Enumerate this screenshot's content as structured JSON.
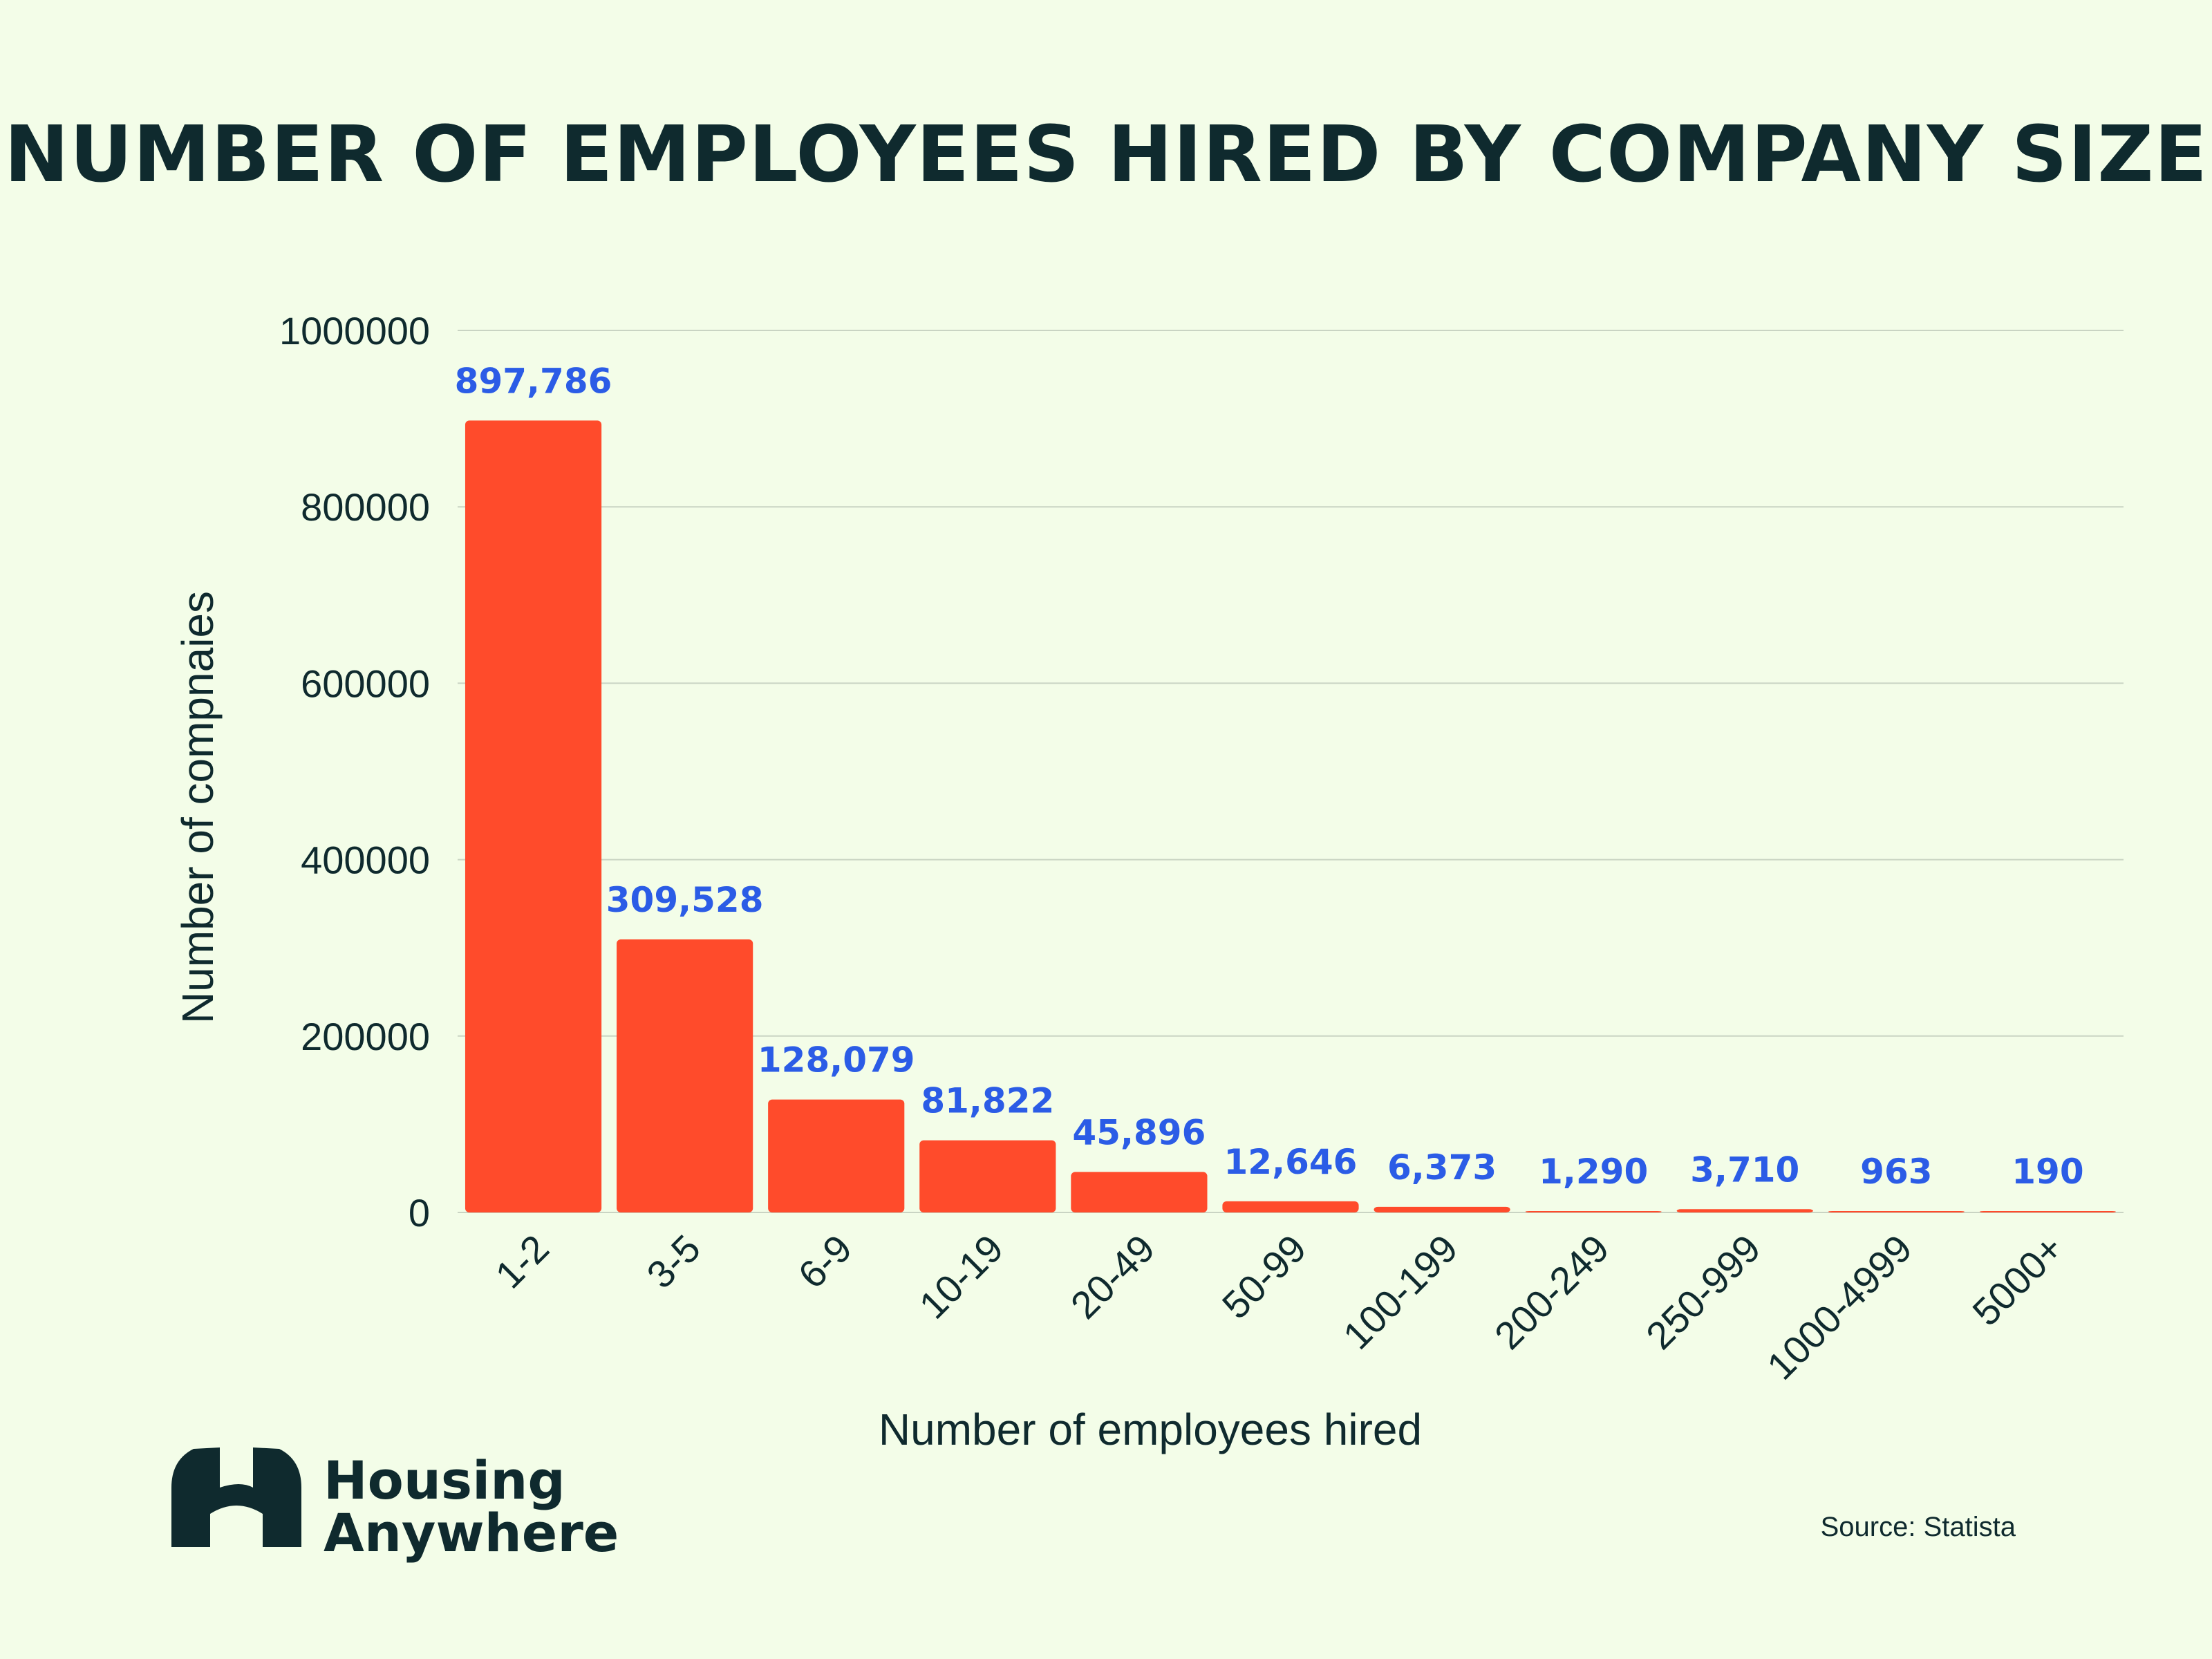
{
  "chart_data": {
    "type": "bar",
    "title": "NUMBER OF EMPLOYEES HIRED BY COMPANY SIZE",
    "xlabel": "Number of employees hired",
    "ylabel": "Number of compnaies",
    "categories": [
      "1-2",
      "3-5",
      "6-9",
      "10-19",
      "20-49",
      "50-99",
      "100-199",
      "200-249",
      "250-999",
      "1000-4999",
      "5000+"
    ],
    "values": [
      897786,
      309528,
      128079,
      81822,
      45896,
      12646,
      6373,
      1290,
      3710,
      963,
      190
    ],
    "value_labels": [
      "897,786",
      "309,528",
      "128,079",
      "81,822",
      "45,896",
      "12,646",
      "6,373",
      "1,290",
      "3,710",
      "963",
      "190"
    ],
    "ylim": [
      0,
      1000000
    ],
    "yticks": [
      0,
      200000,
      400000,
      600000,
      800000,
      1000000
    ],
    "ytick_labels": [
      "0",
      "200000",
      "400000",
      "600000",
      "800000",
      "1000000"
    ],
    "grid": true,
    "legend": "none",
    "colors": {
      "bar": "#ff4b2b",
      "data_label": "#2b5ce6",
      "text": "#0f2a2e",
      "background": "#f3fde8"
    }
  },
  "branding": {
    "logo_line1": "Housing",
    "logo_line2": "Anywhere",
    "logo_icon": "housing-anywhere-logo-icon"
  },
  "source": "Source: Statista"
}
